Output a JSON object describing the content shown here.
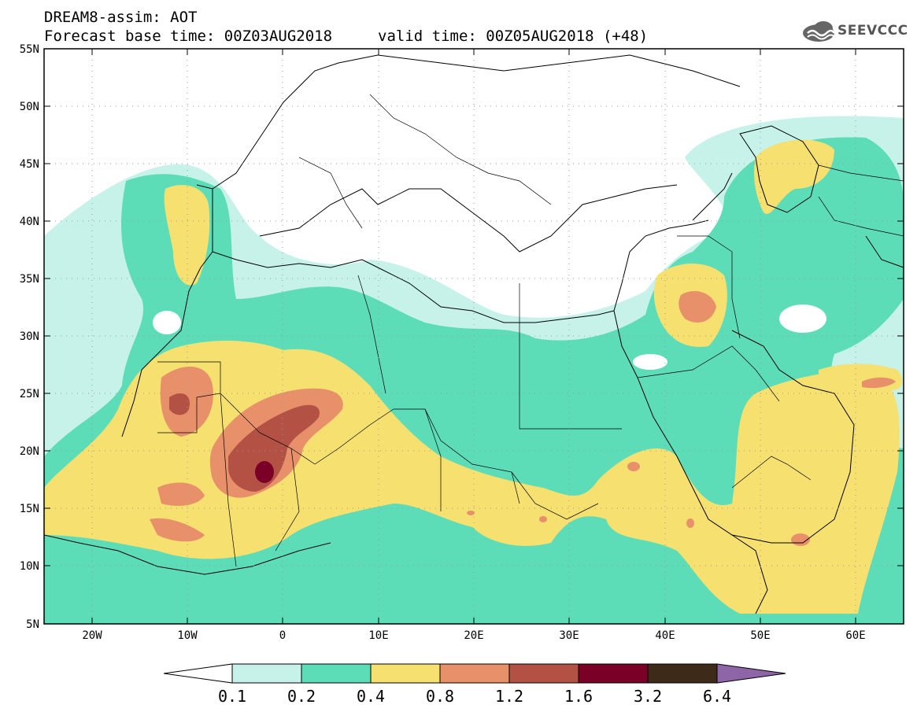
{
  "header": {
    "line1": "DREAM8-assim: AOT",
    "line2": "Forecast base time: 00Z03AUG2018",
    "valid": "valid time: 00Z05AUG2018 (+48)",
    "logo_text": "SEEVCCC"
  },
  "axes": {
    "lat_labels": [
      "55N",
      "50N",
      "45N",
      "40N",
      "35N",
      "30N",
      "25N",
      "20N",
      "15N",
      "10N",
      "5N"
    ],
    "lon_labels": [
      "20W",
      "10W",
      "0",
      "10E",
      "20E",
      "30E",
      "40E",
      "50E",
      "60E"
    ]
  },
  "legend": {
    "bins": [
      {
        "color": "#c6f2ea"
      },
      {
        "color": "#5ddcb8"
      },
      {
        "color": "#f5e070"
      },
      {
        "color": "#e8906a"
      },
      {
        "color": "#b35244"
      },
      {
        "color": "#7b0028"
      },
      {
        "color": "#3e2a18"
      }
    ],
    "low_color": "#ffffff",
    "high_color": "#8e66a8",
    "labels": [
      "0.1",
      "0.2",
      "0.4",
      "0.8",
      "1.2",
      "1.6",
      "3.2",
      "6.4"
    ]
  },
  "colors": {
    "aot_01": "#c6f2ea",
    "aot_02": "#5ddcb8",
    "aot_04": "#f5e070",
    "aot_08": "#e8906a",
    "aot_12": "#b35244",
    "aot_16": "#7b0028"
  }
}
